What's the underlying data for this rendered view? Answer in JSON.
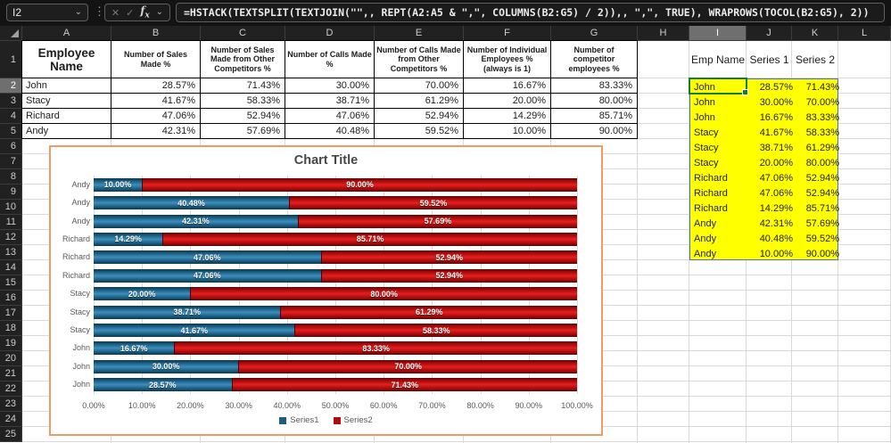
{
  "formula_bar": {
    "name_box_value": "I2",
    "formula": "=HSTACK(TEXTSPLIT(TEXTJOIN(\"\",, REPT(A2:A5 & \",\", COLUMNS(B2:G5) / 2)),, \",\", TRUE), WRAPROWS(TOCOL(B2:G5), 2))",
    "cancel_icon": "✕",
    "enter_icon": "✓",
    "fx_label": "fx",
    "more_icon": "⋮",
    "chevron_icon": "⌄"
  },
  "grid": {
    "column_letters": [
      "A",
      "B",
      "C",
      "D",
      "E",
      "F",
      "G",
      "H",
      "I",
      "J",
      "K",
      "L"
    ],
    "rows_visible": 25,
    "active_cell": "I2",
    "active_column": "I",
    "active_row": "2"
  },
  "main_table": {
    "headers": [
      "Employee Name",
      "Number of Sales Made %",
      "Number of Sales Made from Other Competitors %",
      "Number of Calls Made %",
      "Number of Calls Made from Other Competitors %",
      "Number of Individual Employees % (always is 1)",
      "Number of competitor employees %"
    ],
    "rows": [
      [
        "John",
        "28.57%",
        "71.43%",
        "30.00%",
        "70.00%",
        "16.67%",
        "83.33%"
      ],
      [
        "Stacy",
        "41.67%",
        "58.33%",
        "38.71%",
        "61.29%",
        "20.00%",
        "80.00%"
      ],
      [
        "Richard",
        "47.06%",
        "52.94%",
        "47.06%",
        "52.94%",
        "14.29%",
        "85.71%"
      ],
      [
        "Andy",
        "42.31%",
        "57.69%",
        "40.48%",
        "59.52%",
        "10.00%",
        "90.00%"
      ]
    ]
  },
  "side_table": {
    "headers": [
      "Emp Name",
      "Series 1",
      "Series 2"
    ],
    "rows": [
      [
        "John",
        "28.57%",
        "71.43%"
      ],
      [
        "John",
        "30.00%",
        "70.00%"
      ],
      [
        "John",
        "16.67%",
        "83.33%"
      ],
      [
        "Stacy",
        "41.67%",
        "58.33%"
      ],
      [
        "Stacy",
        "38.71%",
        "61.29%"
      ],
      [
        "Stacy",
        "20.00%",
        "80.00%"
      ],
      [
        "Richard",
        "47.06%",
        "52.94%"
      ],
      [
        "Richard",
        "47.06%",
        "52.94%"
      ],
      [
        "Richard",
        "14.29%",
        "85.71%"
      ],
      [
        "Andy",
        "42.31%",
        "57.69%"
      ],
      [
        "Andy",
        "40.48%",
        "59.52%"
      ],
      [
        "Andy",
        "10.00%",
        "90.00%"
      ]
    ],
    "fill_color": "#FFFF00",
    "range_border_color": "#4472C4",
    "selection_color": "#107C41"
  },
  "chart_data": {
    "type": "bar",
    "orientation": "horizontal",
    "stacked": true,
    "title": "Chart Title",
    "categories": [
      "Andy",
      "Andy",
      "Andy",
      "Richard",
      "Richard",
      "Richard",
      "Stacy",
      "Stacy",
      "Stacy",
      "John",
      "John",
      "John"
    ],
    "series": [
      {
        "name": "Series1",
        "color": "#1C5D82",
        "values": [
          10.0,
          40.48,
          42.31,
          14.29,
          47.06,
          47.06,
          20.0,
          38.71,
          41.67,
          16.67,
          30.0,
          28.57
        ]
      },
      {
        "name": "Series2",
        "color": "#B00B0B",
        "values": [
          90.0,
          59.52,
          57.69,
          85.71,
          52.94,
          52.94,
          80.0,
          61.29,
          58.33,
          83.33,
          70.0,
          71.43
        ]
      }
    ],
    "x_tick_labels": [
      "0.00%",
      "10.00%",
      "20.00%",
      "30.00%",
      "40.00%",
      "50.00%",
      "60.00%",
      "70.00%",
      "80.00%",
      "90.00%",
      "100.00%"
    ],
    "xlim": [
      0,
      100
    ],
    "data_label_suffix": "%",
    "legend_position": "bottom",
    "gridlines": true,
    "frame_color": "#ED9C68"
  }
}
